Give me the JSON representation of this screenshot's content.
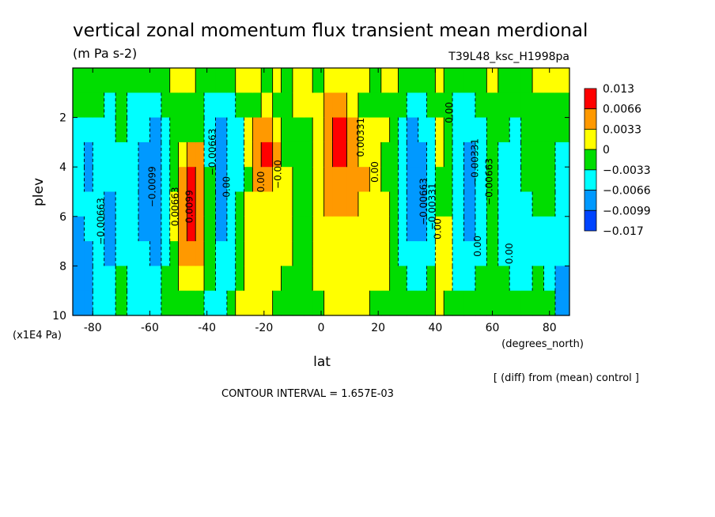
{
  "title": "vertical zonal momentum flux transient mean merdional",
  "units": "(m Pa s-2)",
  "run_id": "T39L48_ksc_H1998pa",
  "footer_note": "[ (diff) from (mean) control ]",
  "contour_interval": "CONTOUR INTERVAL = 1.657E-03",
  "colorbar": {
    "labels": [
      "0.013",
      "0.0066",
      "0.0033",
      "0",
      "−0.0033",
      "−0.0066",
      "−0.0099",
      "−0.017"
    ],
    "colors": [
      "#ff0000",
      "#ff9900",
      "#ffff00",
      "#00dd00",
      "#00ffff",
      "#0099ff",
      "#0044ff"
    ]
  },
  "contour_labels": [
    {
      "text": "−0.00663"
    },
    {
      "text": "−0.0099"
    },
    {
      "text": "0.00663"
    },
    {
      "text": "0.0099"
    },
    {
      "text": "−0.00663"
    },
    {
      "text": "0.00"
    },
    {
      "text": "0.00"
    },
    {
      "text": "−0.00"
    },
    {
      "text": "0.00331"
    },
    {
      "text": "0.00"
    },
    {
      "text": "−0.00663"
    },
    {
      "text": "−0.00331"
    },
    {
      "text": "0.00"
    },
    {
      "text": "0.00"
    },
    {
      "text": "−0.00331"
    },
    {
      "text": "0.00"
    },
    {
      "text": "−0.00663"
    },
    {
      "text": "0.00"
    }
  ],
  "chart_data": {
    "type": "heatmap",
    "xlabel": "lat",
    "xunit": "(degrees_north)",
    "ylabel": "plev",
    "yunit": "(x1E4 Pa)",
    "xlim": [
      -87,
      87
    ],
    "ylim": [
      10,
      0
    ],
    "xticks": [
      -80,
      -60,
      -40,
      -20,
      0,
      20,
      40,
      60,
      80
    ],
    "yticks": [
      2,
      4,
      6,
      8,
      10
    ],
    "levels": [
      -0.017,
      -0.0099,
      -0.0066,
      -0.0033,
      0,
      0.0033,
      0.0066,
      0.013
    ],
    "bands": [
      {
        "lat": [
          -87,
          -83
        ],
        "pattern": [
          "g",
          "g",
          "c",
          "c",
          "c",
          "c",
          "b",
          "b",
          "b",
          "b"
        ]
      },
      {
        "lat": [
          -83,
          -80
        ],
        "pattern": [
          "g",
          "g",
          "c",
          "b",
          "b",
          "c",
          "c",
          "b",
          "b",
          "b"
        ]
      },
      {
        "lat": [
          -80,
          -76
        ],
        "pattern": [
          "g",
          "g",
          "c",
          "c",
          "c",
          "c",
          "c",
          "c",
          "c",
          "c"
        ]
      },
      {
        "lat": [
          -76,
          -72
        ],
        "pattern": [
          "g",
          "c",
          "c",
          "c",
          "c",
          "b",
          "b",
          "b",
          "c",
          "c"
        ]
      },
      {
        "lat": [
          -72,
          -68
        ],
        "pattern": [
          "g",
          "g",
          "g",
          "c",
          "c",
          "c",
          "c",
          "c",
          "g",
          "g"
        ]
      },
      {
        "lat": [
          -68,
          -64
        ],
        "pattern": [
          "g",
          "c",
          "c",
          "c",
          "c",
          "c",
          "c",
          "c",
          "c",
          "c"
        ]
      },
      {
        "lat": [
          -64,
          -60
        ],
        "pattern": [
          "g",
          "c",
          "c",
          "b",
          "b",
          "b",
          "b",
          "c",
          "c",
          "c"
        ]
      },
      {
        "lat": [
          -60,
          -56
        ],
        "pattern": [
          "g",
          "c",
          "b",
          "b",
          "b",
          "b",
          "b",
          "b",
          "c",
          "c"
        ]
      },
      {
        "lat": [
          -56,
          -53
        ],
        "pattern": [
          "g",
          "g",
          "c",
          "c",
          "c",
          "c",
          "c",
          "c",
          "g",
          "g"
        ]
      },
      {
        "lat": [
          -53,
          -50
        ],
        "pattern": [
          "y",
          "g",
          "g",
          "g",
          "g",
          "y",
          "y",
          "g",
          "g",
          "g"
        ]
      },
      {
        "lat": [
          -50,
          -47
        ],
        "pattern": [
          "y",
          "g",
          "g",
          "y",
          "o",
          "o",
          "o",
          "o",
          "y",
          "g"
        ]
      },
      {
        "lat": [
          -47,
          -44
        ],
        "pattern": [
          "y",
          "g",
          "g",
          "o",
          "r",
          "r",
          "r",
          "o",
          "y",
          "g"
        ]
      },
      {
        "lat": [
          -44,
          -41
        ],
        "pattern": [
          "g",
          "g",
          "g",
          "o",
          "o",
          "o",
          "o",
          "o",
          "y",
          "g"
        ]
      },
      {
        "lat": [
          -41,
          -37
        ],
        "pattern": [
          "g",
          "c",
          "c",
          "c",
          "g",
          "g",
          "g",
          "g",
          "g",
          "c"
        ]
      },
      {
        "lat": [
          -37,
          -33
        ],
        "pattern": [
          "g",
          "c",
          "b",
          "b",
          "b",
          "b",
          "b",
          "c",
          "c",
          "c"
        ]
      },
      {
        "lat": [
          -33,
          -30
        ],
        "pattern": [
          "g",
          "c",
          "c",
          "c",
          "c",
          "c",
          "c",
          "c",
          "c",
          "g"
        ]
      },
      {
        "lat": [
          -30,
          -27
        ],
        "pattern": [
          "y",
          "g",
          "c",
          "c",
          "c",
          "g",
          "g",
          "g",
          "g",
          "y"
        ]
      },
      {
        "lat": [
          -27,
          -24
        ],
        "pattern": [
          "y",
          "g",
          "y",
          "y",
          "g",
          "y",
          "y",
          "y",
          "y",
          "y"
        ]
      },
      {
        "lat": [
          -24,
          -21
        ],
        "pattern": [
          "y",
          "g",
          "o",
          "o",
          "o",
          "y",
          "y",
          "y",
          "y",
          "y"
        ]
      },
      {
        "lat": [
          -21,
          -17
        ],
        "pattern": [
          "g",
          "y",
          "o",
          "r",
          "o",
          "y",
          "y",
          "y",
          "y",
          "y"
        ]
      },
      {
        "lat": [
          -17,
          -14
        ],
        "pattern": [
          "y",
          "g",
          "y",
          "o",
          "y",
          "y",
          "y",
          "y",
          "y",
          "g"
        ]
      },
      {
        "lat": [
          -14,
          -10
        ],
        "pattern": [
          "g",
          "g",
          "g",
          "g",
          "y",
          "y",
          "y",
          "y",
          "g",
          "g"
        ]
      },
      {
        "lat": [
          -10,
          -6
        ],
        "pattern": [
          "y",
          "y",
          "g",
          "g",
          "g",
          "g",
          "g",
          "g",
          "g",
          "g"
        ]
      },
      {
        "lat": [
          -6,
          -3
        ],
        "pattern": [
          "y",
          "y",
          "g",
          "g",
          "g",
          "g",
          "g",
          "g",
          "g",
          "g"
        ]
      },
      {
        "lat": [
          -3,
          1
        ],
        "pattern": [
          "g",
          "y",
          "y",
          "y",
          "y",
          "y",
          "y",
          "y",
          "y",
          "g"
        ]
      },
      {
        "lat": [
          1,
          4
        ],
        "pattern": [
          "y",
          "o",
          "o",
          "o",
          "o",
          "o",
          "y",
          "y",
          "y",
          "y"
        ]
      },
      {
        "lat": [
          4,
          9
        ],
        "pattern": [
          "y",
          "o",
          "r",
          "r",
          "o",
          "o",
          "y",
          "y",
          "y",
          "y"
        ]
      },
      {
        "lat": [
          9,
          13
        ],
        "pattern": [
          "y",
          "y",
          "o",
          "o",
          "o",
          "o",
          "y",
          "y",
          "y",
          "y"
        ]
      },
      {
        "lat": [
          13,
          17
        ],
        "pattern": [
          "y",
          "g",
          "y",
          "y",
          "o",
          "y",
          "y",
          "y",
          "y",
          "y"
        ]
      },
      {
        "lat": [
          17,
          21
        ],
        "pattern": [
          "g",
          "g",
          "y",
          "y",
          "y",
          "y",
          "y",
          "y",
          "y",
          "g"
        ]
      },
      {
        "lat": [
          21,
          24
        ],
        "pattern": [
          "y",
          "g",
          "y",
          "g",
          "g",
          "y",
          "y",
          "y",
          "y",
          "g"
        ]
      },
      {
        "lat": [
          24,
          27
        ],
        "pattern": [
          "y",
          "g",
          "g",
          "g",
          "g",
          "g",
          "g",
          "g",
          "g",
          "g"
        ]
      },
      {
        "lat": [
          27,
          30
        ],
        "pattern": [
          "g",
          "g",
          "c",
          "c",
          "c",
          "c",
          "c",
          "c",
          "g",
          "g"
        ]
      },
      {
        "lat": [
          30,
          34
        ],
        "pattern": [
          "g",
          "c",
          "b",
          "b",
          "b",
          "b",
          "b",
          "c",
          "c",
          "g"
        ]
      },
      {
        "lat": [
          34,
          37
        ],
        "pattern": [
          "g",
          "c",
          "c",
          "b",
          "b",
          "b",
          "b",
          "c",
          "c",
          "g"
        ]
      },
      {
        "lat": [
          37,
          40
        ],
        "pattern": [
          "g",
          "g",
          "c",
          "c",
          "c",
          "c",
          "c",
          "c",
          "g",
          "g"
        ]
      },
      {
        "lat": [
          40,
          43
        ],
        "pattern": [
          "y",
          "g",
          "y",
          "y",
          "g",
          "g",
          "y",
          "y",
          "y",
          "y"
        ]
      },
      {
        "lat": [
          43,
          46
        ],
        "pattern": [
          "g",
          "g",
          "g",
          "g",
          "g",
          "g",
          "y",
          "y",
          "y",
          "g"
        ]
      },
      {
        "lat": [
          46,
          50
        ],
        "pattern": [
          "g",
          "c",
          "c",
          "c",
          "c",
          "c",
          "c",
          "c",
          "c",
          "g"
        ]
      },
      {
        "lat": [
          50,
          54
        ],
        "pattern": [
          "g",
          "c",
          "c",
          "b",
          "b",
          "b",
          "b",
          "c",
          "c",
          "g"
        ]
      },
      {
        "lat": [
          54,
          58
        ],
        "pattern": [
          "g",
          "g",
          "c",
          "c",
          "c",
          "c",
          "c",
          "c",
          "g",
          "g"
        ]
      },
      {
        "lat": [
          58,
          62
        ],
        "pattern": [
          "y",
          "g",
          "g",
          "g",
          "g",
          "g",
          "g",
          "g",
          "g",
          "g"
        ]
      },
      {
        "lat": [
          62,
          66
        ],
        "pattern": [
          "g",
          "g",
          "g",
          "c",
          "c",
          "c",
          "c",
          "c",
          "g",
          "g"
        ]
      },
      {
        "lat": [
          66,
          70
        ],
        "pattern": [
          "g",
          "g",
          "c",
          "c",
          "c",
          "c",
          "c",
          "c",
          "c",
          "g"
        ]
      },
      {
        "lat": [
          70,
          74
        ],
        "pattern": [
          "g",
          "g",
          "g",
          "g",
          "g",
          "c",
          "c",
          "c",
          "c",
          "g"
        ]
      },
      {
        "lat": [
          74,
          78
        ],
        "pattern": [
          "y",
          "g",
          "g",
          "g",
          "g",
          "g",
          "c",
          "c",
          "g",
          "g"
        ]
      },
      {
        "lat": [
          78,
          82
        ],
        "pattern": [
          "y",
          "g",
          "g",
          "g",
          "g",
          "g",
          "c",
          "c",
          "c",
          "g"
        ]
      },
      {
        "lat": [
          82,
          87
        ],
        "pattern": [
          "y",
          "g",
          "g",
          "c",
          "c",
          "c",
          "c",
          "c",
          "b",
          "b"
        ]
      }
    ],
    "code_map": {
      "r": 0.013,
      "o": 0.0066,
      "y": 0.0033,
      "g": 0,
      "c": -0.0033,
      "b": -0.0066,
      "d": -0.0099
    }
  }
}
